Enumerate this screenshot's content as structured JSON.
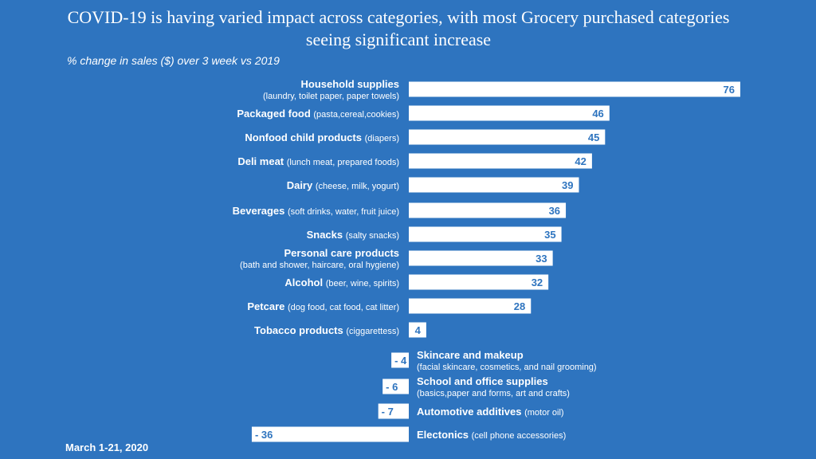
{
  "chart_data": {
    "type": "bar",
    "orientation": "horizontal",
    "title": "COVID-19 is having varied impact across categories, with most Grocery purchased categories seeing significant increase",
    "subtitle": "% change in sales ($) over 3 week vs 2019",
    "footnote": "March 1-21, 2020",
    "xlim": [
      -36,
      76
    ],
    "categories": [
      {
        "name": "Household supplies",
        "detail": "(laundry, toilet paper, paper towels)",
        "value": 76,
        "label": "76",
        "two_line": true
      },
      {
        "name": "Packaged food",
        "detail": "(pasta,cereal,cookies)",
        "value": 46,
        "label": "46",
        "two_line": false
      },
      {
        "name": "Nonfood child products",
        "detail": "(diapers)",
        "value": 45,
        "label": "45",
        "two_line": false
      },
      {
        "name": "Deli meat",
        "detail": "(lunch meat, prepared foods)",
        "value": 42,
        "label": "42",
        "two_line": false
      },
      {
        "name": "Dairy",
        "detail": "(cheese, milk, yogurt)",
        "value": 39,
        "label": "39",
        "two_line": false
      },
      {
        "name": "Beverages",
        "detail": "(soft drinks, water, fruit juice)",
        "value": 36,
        "label": "36",
        "two_line": false
      },
      {
        "name": "Snacks",
        "detail": "(salty snacks)",
        "value": 35,
        "label": "35",
        "two_line": false
      },
      {
        "name": "Personal care products",
        "detail": "(bath and shower, haircare, oral hygiene)",
        "value": 33,
        "label": "33",
        "two_line": true
      },
      {
        "name": "Alcohol",
        "detail": "(beer, wine, spirits)",
        "value": 32,
        "label": "32",
        "two_line": false
      },
      {
        "name": "Petcare",
        "detail": "(dog food, cat food, cat litter)",
        "value": 28,
        "label": "28",
        "two_line": false
      },
      {
        "name": "Tobacco products",
        "detail": "(ciggarettess)",
        "value": 4,
        "label": "4",
        "two_line": false
      },
      {
        "name": "Skincare and makeup",
        "detail": "(facial skincare, cosmetics, and nail grooming)",
        "value": -4,
        "label": "- 4",
        "two_line": true
      },
      {
        "name": "School and office supplies",
        "detail": "(basics,paper and forms, art and crafts)",
        "value": -6,
        "label": "- 6",
        "two_line": true
      },
      {
        "name": "Automotive additives",
        "detail": "(motor oil)",
        "value": -7,
        "label": "- 7",
        "two_line": false
      },
      {
        "name": "Electonics",
        "detail": "(cell phone accessories)",
        "value": -36,
        "label": "- 36",
        "two_line": false
      }
    ]
  }
}
